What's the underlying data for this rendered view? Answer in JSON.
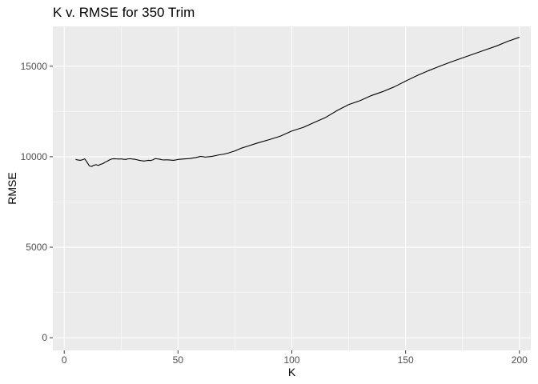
{
  "chart_data": {
    "type": "line",
    "title": "K v. RMSE for 350 Trim",
    "xlabel": "K",
    "ylabel": "RMSE",
    "xlim": [
      -5,
      205
    ],
    "ylim": [
      -700,
      17200
    ],
    "x_ticks": [
      0,
      50,
      100,
      150,
      200
    ],
    "y_ticks": [
      0,
      5000,
      10000,
      15000
    ],
    "x_tick_labels": [
      "0",
      "50",
      "100",
      "150",
      "200"
    ],
    "y_tick_labels": [
      "0",
      "5000",
      "10000",
      "15000"
    ],
    "grid": true,
    "series": [
      {
        "color": "#000000",
        "x": [
          5,
          6,
          7,
          8,
          9,
          10,
          11,
          12,
          13,
          14,
          15,
          16,
          17,
          18,
          19,
          20,
          21,
          22,
          23,
          24,
          25,
          26,
          27,
          28,
          29,
          30,
          31,
          32,
          33,
          34,
          35,
          36,
          37,
          38,
          39,
          40,
          41,
          42,
          43,
          44,
          45,
          46,
          47,
          48,
          49,
          50,
          52,
          55,
          58,
          60,
          62,
          65,
          68,
          70,
          72,
          75,
          78,
          80,
          85,
          90,
          95,
          100,
          105,
          110,
          115,
          120,
          125,
          130,
          135,
          140,
          145,
          150,
          155,
          160,
          165,
          170,
          175,
          180,
          185,
          190,
          195,
          200
        ],
        "y": [
          9850,
          9820,
          9800,
          9830,
          9880,
          9700,
          9500,
          9460,
          9530,
          9560,
          9520,
          9580,
          9620,
          9700,
          9760,
          9830,
          9880,
          9890,
          9880,
          9870,
          9880,
          9860,
          9850,
          9880,
          9890,
          9870,
          9860,
          9830,
          9800,
          9780,
          9760,
          9780,
          9800,
          9790,
          9830,
          9900,
          9880,
          9860,
          9830,
          9820,
          9830,
          9820,
          9810,
          9800,
          9820,
          9850,
          9870,
          9900,
          9960,
          10020,
          9980,
          10020,
          10100,
          10140,
          10200,
          10320,
          10480,
          10560,
          10760,
          10940,
          11140,
          11420,
          11620,
          11900,
          12180,
          12560,
          12880,
          13100,
          13380,
          13600,
          13860,
          14180,
          14480,
          14750,
          15000,
          15240,
          15460,
          15680,
          15900,
          16120,
          16380,
          16600
        ]
      }
    ]
  }
}
